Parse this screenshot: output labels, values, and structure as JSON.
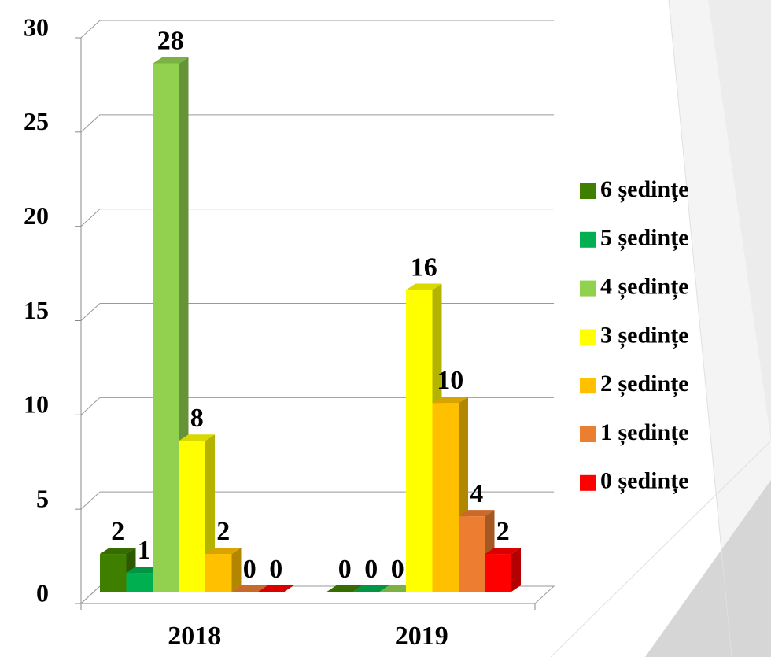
{
  "chart_data": {
    "type": "bar",
    "categories": [
      "2018",
      "2019"
    ],
    "series": [
      {
        "name": "6 ședințe",
        "color": "#3f7f00",
        "values": [
          2,
          0
        ]
      },
      {
        "name": "5 ședințe",
        "color": "#00b050",
        "values": [
          1,
          0
        ]
      },
      {
        "name": "4 ședințe",
        "color": "#92d050",
        "values": [
          28,
          0
        ]
      },
      {
        "name": "3 ședințe",
        "color": "#ffff00",
        "values": [
          8,
          16
        ]
      },
      {
        "name": "2 ședințe",
        "color": "#ffc000",
        "values": [
          2,
          10
        ]
      },
      {
        "name": "1 ședințe",
        "color": "#ed7d31",
        "values": [
          0,
          4
        ]
      },
      {
        "name": "0 ședințe",
        "color": "#ff0000",
        "values": [
          0,
          2
        ]
      }
    ],
    "ylim": [
      0,
      30
    ],
    "yticks": [
      0,
      5,
      10,
      15,
      20,
      25,
      30
    ],
    "grid": true,
    "legend": "right"
  }
}
